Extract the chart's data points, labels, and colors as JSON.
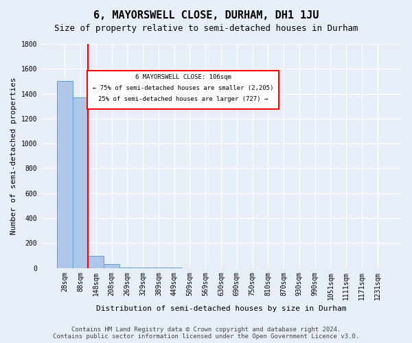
{
  "title": "6, MAYORSWELL CLOSE, DURHAM, DH1 1JU",
  "subtitle": "Size of property relative to semi-detached houses in Durham",
  "xlabel": "Distribution of semi-detached houses by size in Durham",
  "ylabel": "Number of semi-detached properties",
  "footer_line1": "Contains HM Land Registry data © Crown copyright and database right 2024.",
  "footer_line2": "Contains public sector information licensed under the Open Government Licence v3.0.",
  "bin_labels": [
    "28sqm",
    "88sqm",
    "148sqm",
    "208sqm",
    "269sqm",
    "329sqm",
    "389sqm",
    "449sqm",
    "509sqm",
    "569sqm",
    "630sqm",
    "690sqm",
    "750sqm",
    "810sqm",
    "870sqm",
    "930sqm",
    "990sqm",
    "1051sqm",
    "1111sqm",
    "1171sqm",
    "1231sqm"
  ],
  "bar_values": [
    1500,
    1370,
    95,
    30,
    5,
    2,
    1,
    1,
    0,
    0,
    0,
    0,
    0,
    0,
    0,
    0,
    0,
    0,
    0,
    0,
    0
  ],
  "bar_color": "#aec6e8",
  "bar_edge_color": "#5a9fd4",
  "ylim": [
    0,
    1800
  ],
  "property_size": "106sqm",
  "pct_smaller": 75,
  "count_smaller": "2,205",
  "pct_larger": 25,
  "count_larger": "727",
  "annotation_text_line1": "6 MAYORSWELL CLOSE: 106sqm",
  "annotation_text_line2": "← 75% of semi-detached houses are smaller (2,205)",
  "annotation_text_line3": "25% of semi-detached houses are larger (727) →",
  "bg_color": "#e8eef8",
  "grid_color": "#ffffff",
  "title_fontsize": 11,
  "subtitle_fontsize": 9,
  "axis_label_fontsize": 8,
  "tick_fontsize": 7,
  "footer_fontsize": 6.5,
  "annotation_fontsize": 6.5,
  "red_line_x": 1.5
}
